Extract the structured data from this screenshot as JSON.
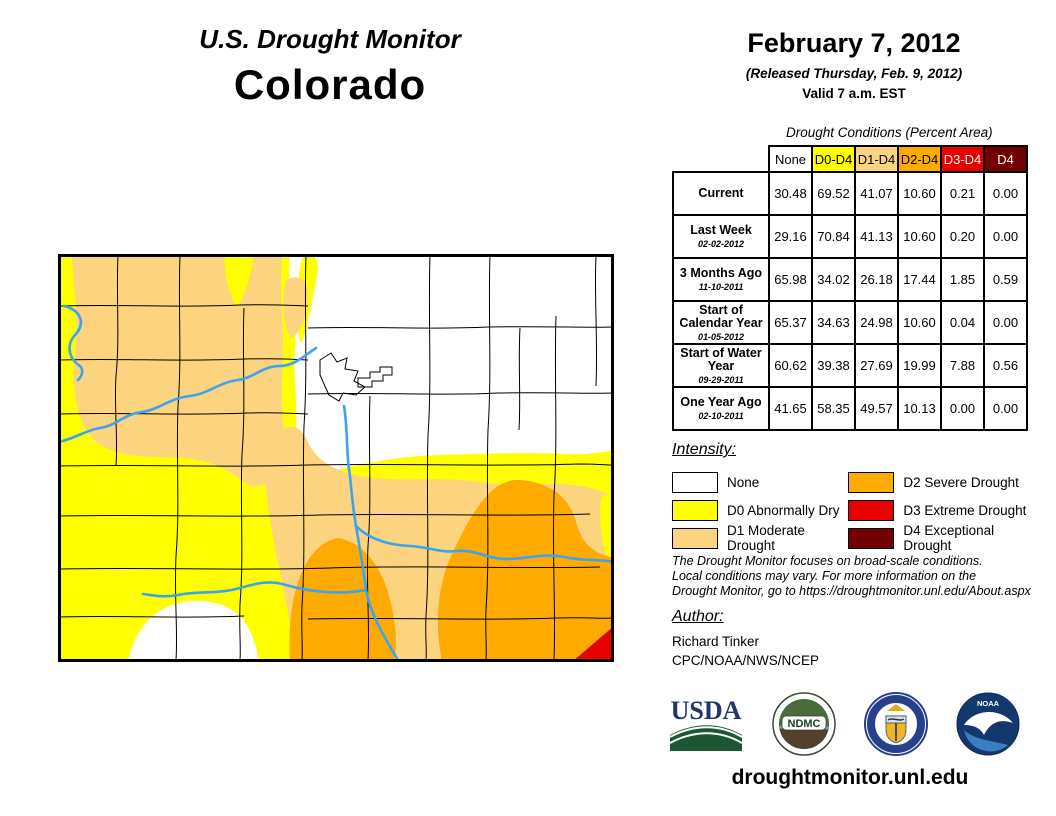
{
  "title": {
    "line1": "U.S. Drought Monitor",
    "line2": "Colorado"
  },
  "date_block": {
    "date": "February 7, 2012",
    "released": "(Released Thursday, Feb. 9, 2012)",
    "valid": "Valid 7 a.m. EST"
  },
  "table": {
    "title": "Drought Conditions (Percent Area)",
    "columns": [
      {
        "label": "None",
        "bg": "#FFFFFF",
        "fg": "#000000"
      },
      {
        "label": "D0-D4",
        "bg": "#FFFF00",
        "fg": "#000000"
      },
      {
        "label": "D1-D4",
        "bg": "#FCD37F",
        "fg": "#000000"
      },
      {
        "label": "D2-D4",
        "bg": "#FFAA00",
        "fg": "#000000"
      },
      {
        "label": "D3-D4",
        "bg": "#E60000",
        "fg": "#FFFFFF"
      },
      {
        "label": "D4",
        "bg": "#730000",
        "fg": "#FFFFFF"
      }
    ],
    "rows": [
      {
        "label": "Current",
        "sublabel": "",
        "values": [
          "30.48",
          "69.52",
          "41.07",
          "10.60",
          "0.21",
          "0.00"
        ]
      },
      {
        "label": "Last Week",
        "sublabel": "02-02-2012",
        "values": [
          "29.16",
          "70.84",
          "41.13",
          "10.60",
          "0.20",
          "0.00"
        ]
      },
      {
        "label": "3 Months Ago",
        "sublabel": "11-10-2011",
        "values": [
          "65.98",
          "34.02",
          "26.18",
          "17.44",
          "1.85",
          "0.59"
        ]
      },
      {
        "label": "Start of Calendar Year",
        "sublabel": "01-05-2012",
        "values": [
          "65.37",
          "34.63",
          "24.98",
          "10.60",
          "0.04",
          "0.00"
        ]
      },
      {
        "label": "Start of Water Year",
        "sublabel": "09-29-2011",
        "values": [
          "60.62",
          "39.38",
          "27.69",
          "19.99",
          "7.88",
          "0.56"
        ]
      },
      {
        "label": "One Year Ago",
        "sublabel": "02-10-2011",
        "values": [
          "41.65",
          "58.35",
          "49.57",
          "10.13",
          "0.00",
          "0.00"
        ]
      }
    ]
  },
  "legend": {
    "heading": "Intensity:",
    "items": [
      {
        "label": "None",
        "color": "#FFFFFF"
      },
      {
        "label": "D0 Abnormally Dry",
        "color": "#FFFF00"
      },
      {
        "label": "D1 Moderate Drought",
        "color": "#FCD37F"
      },
      {
        "label": "D2 Severe Drought",
        "color": "#FFAA00"
      },
      {
        "label": "D3 Extreme Drought",
        "color": "#E60000"
      },
      {
        "label": "D4 Exceptional Drought",
        "color": "#730000"
      }
    ]
  },
  "disclaimer": "The Drought Monitor focuses on broad-scale conditions.\nLocal conditions may vary. For more information on the\nDrought Monitor, go to https://droughtmonitor.unl.edu/About.aspx",
  "author": {
    "heading": "Author:",
    "name": "Richard Tinker",
    "org": "CPC/NOAA/NWS/NCEP"
  },
  "logos": {
    "usda": "USDA",
    "ndmc": "NDMC",
    "noaa": "NOAA"
  },
  "footer": {
    "url": "droughtmonitor.unl.edu"
  },
  "map": {
    "state": "Colorado",
    "colors": {
      "none": "#FFFFFF",
      "d0": "#FFFF00",
      "d1": "#FCD37F",
      "d2": "#FFAA00",
      "d3": "#E60000",
      "d4": "#730000",
      "river": "#3BA3F0",
      "boundary": "#000000"
    }
  }
}
